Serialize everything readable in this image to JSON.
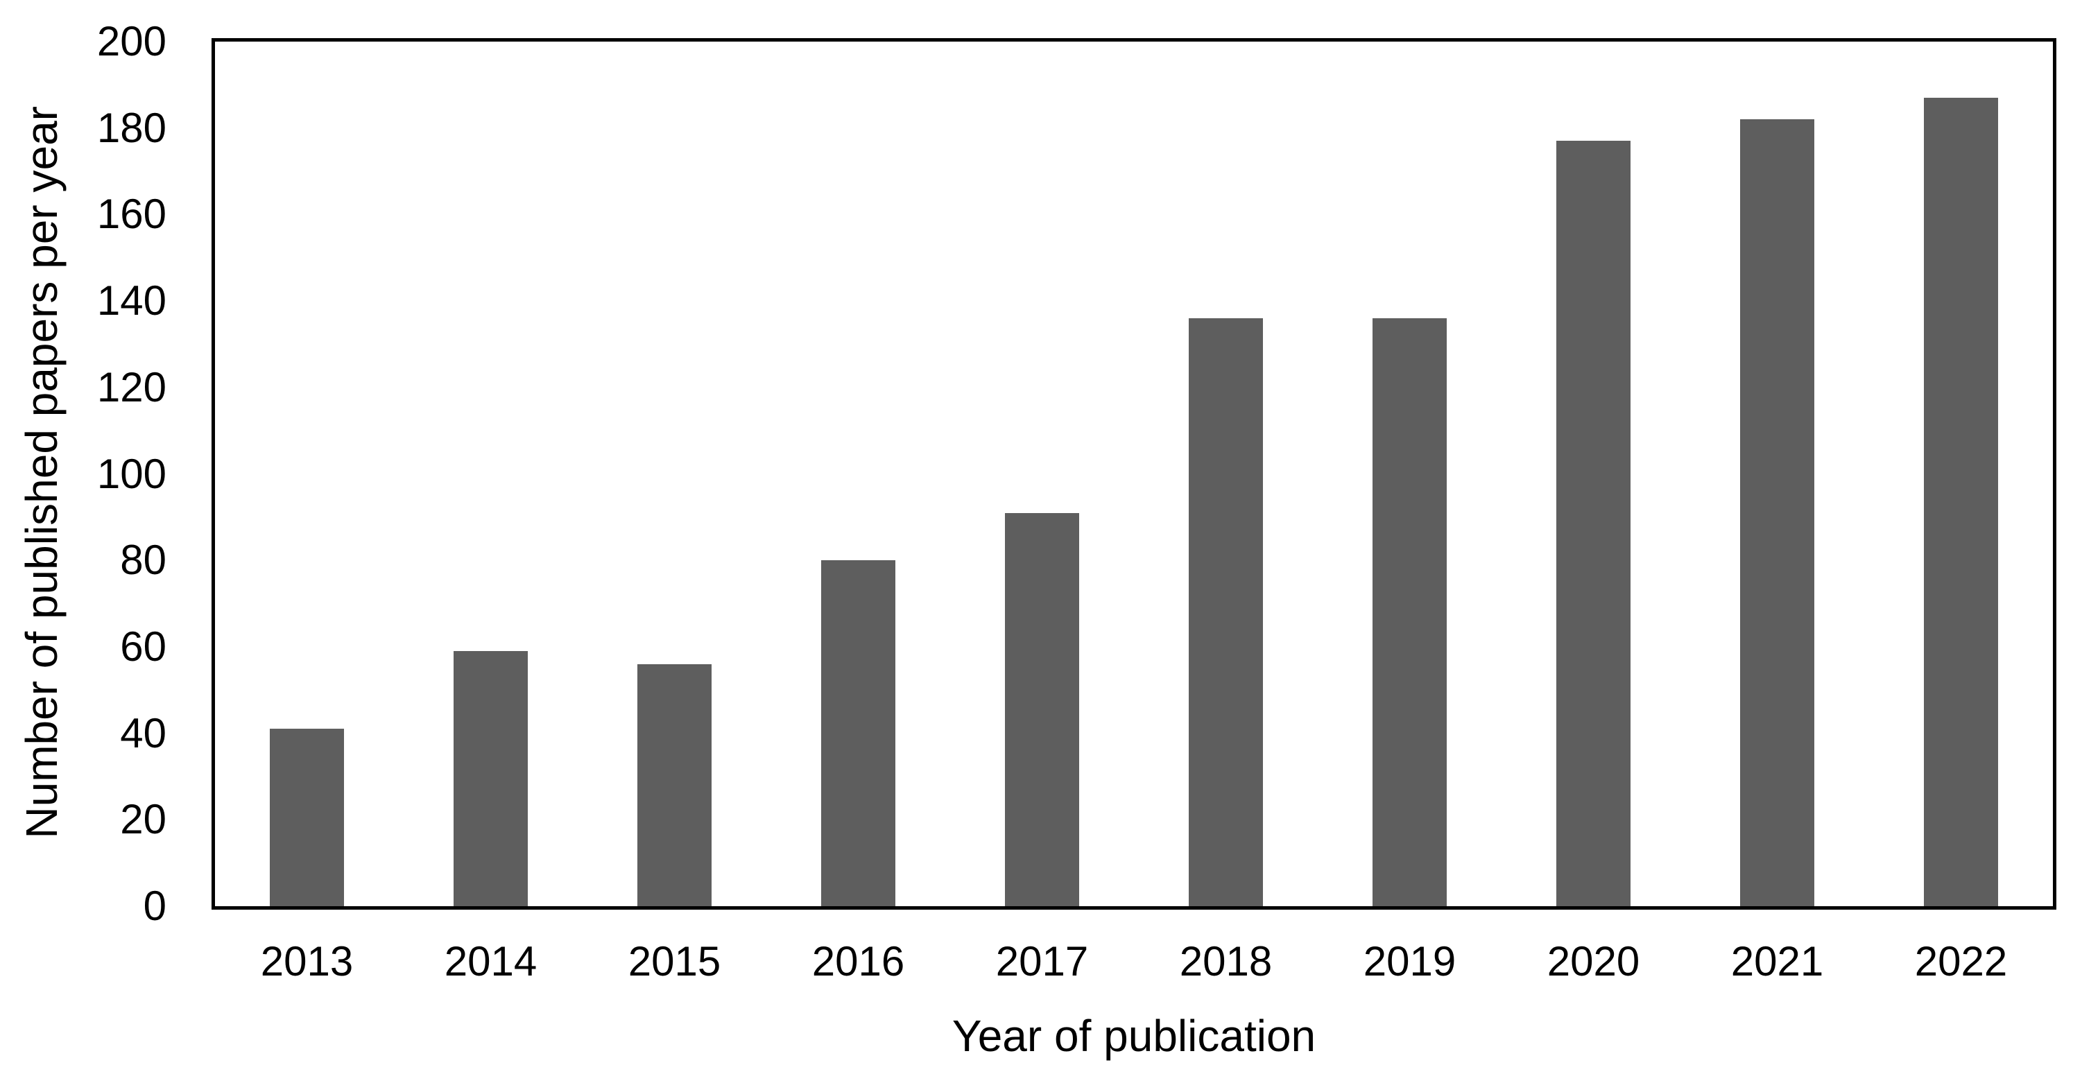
{
  "figure": {
    "background": "#ffffff"
  },
  "chart_data": {
    "type": "bar",
    "title": "",
    "xlabel": "Year of publication",
    "ylabel": "Number of published papers per year",
    "categories": [
      "2013",
      "2014",
      "2015",
      "2016",
      "2017",
      "2018",
      "2019",
      "2020",
      "2021",
      "2022"
    ],
    "values": [
      41,
      59,
      56,
      80,
      91,
      136,
      136,
      177,
      182,
      187
    ],
    "ylim": [
      0,
      200
    ],
    "ytick_step": 20,
    "yticks": [
      0,
      20,
      40,
      60,
      80,
      100,
      120,
      140,
      160,
      180,
      200
    ],
    "grid": false,
    "legend_position": "none",
    "bar_color": "#5e5e5e",
    "axis_color": "#000000",
    "text_color": "#000000"
  }
}
